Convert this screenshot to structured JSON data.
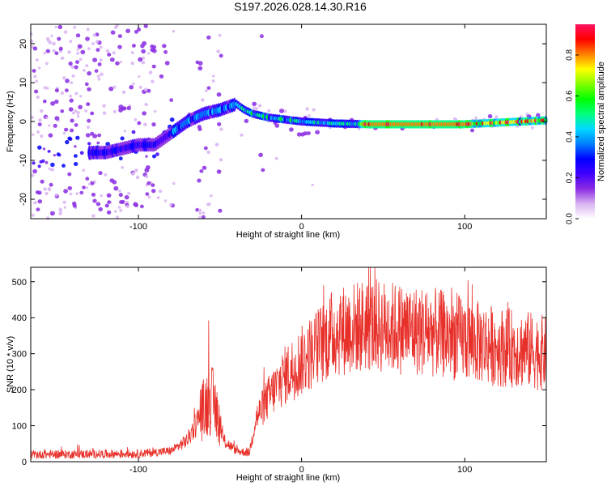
{
  "figure": {
    "title": "S197.2026.028.14.30.R16"
  },
  "chart_data": [
    {
      "type": "heatmap",
      "name": "spectrogram",
      "title": "S197.2026.028.14.30.R16",
      "xlabel": "Height of straight line (km)",
      "ylabel": "Frequency (Hz)",
      "xlim": [
        -166,
        150
      ],
      "ylim": [
        -25,
        25
      ],
      "xticks": [
        -100,
        0,
        100
      ],
      "yticks": [
        -20,
        -10,
        0,
        10,
        20
      ],
      "ridge": [
        {
          "x": -120,
          "y": -8
        },
        {
          "x": -110,
          "y": -7
        },
        {
          "x": -100,
          "y": -6
        },
        {
          "x": -90,
          "y": -6
        },
        {
          "x": -80,
          "y": -3
        },
        {
          "x": -70,
          "y": 0
        },
        {
          "x": -60,
          "y": 2
        },
        {
          "x": -50,
          "y": 3
        },
        {
          "x": -40,
          "y": 4.5
        },
        {
          "x": -35,
          "y": 3
        },
        {
          "x": -30,
          "y": 2
        },
        {
          "x": -20,
          "y": 1
        },
        {
          "x": -10,
          "y": 0.5
        },
        {
          "x": 0,
          "y": 0
        },
        {
          "x": 20,
          "y": -0.5
        },
        {
          "x": 40,
          "y": -0.7
        },
        {
          "x": 60,
          "y": -0.7
        },
        {
          "x": 80,
          "y": -0.7
        },
        {
          "x": 100,
          "y": -0.7
        },
        {
          "x": 120,
          "y": -0.3
        },
        {
          "x": 150,
          "y": 0.3
        }
      ],
      "colorbar": {
        "label": "Normalized spectral amplitude",
        "range": [
          0.0,
          0.95
        ],
        "ticks": [
          "0.0",
          "0.2",
          "0.4",
          "0.6",
          "0.8"
        ],
        "colors": [
          "#ffffff",
          "#d9b3f2",
          "#8a2be2",
          "#4000ff",
          "#0000ff",
          "#0080ff",
          "#00d8ff",
          "#00ff80",
          "#00ff00",
          "#80ff00",
          "#ffff00",
          "#ff8000",
          "#ff0000",
          "#ff1060"
        ]
      }
    },
    {
      "type": "line",
      "name": "snr",
      "xlabel": "Height of straight line (km)",
      "ylabel": "SNR (10 * v/v)",
      "xlim": [
        -166,
        150
      ],
      "ylim": [
        0,
        540
      ],
      "xticks": [
        -100,
        0,
        100
      ],
      "yticks": [
        0,
        100,
        200,
        300,
        400,
        500
      ],
      "line_color": "#e8302a",
      "envelope": [
        {
          "x": -166,
          "y": 20
        },
        {
          "x": -100,
          "y": 22
        },
        {
          "x": -80,
          "y": 30
        },
        {
          "x": -70,
          "y": 60
        },
        {
          "x": -62,
          "y": 130
        },
        {
          "x": -56,
          "y": 180
        },
        {
          "x": -52,
          "y": 140
        },
        {
          "x": -48,
          "y": 60
        },
        {
          "x": -40,
          "y": 30
        },
        {
          "x": -32,
          "y": 25
        },
        {
          "x": -28,
          "y": 120
        },
        {
          "x": -20,
          "y": 180
        },
        {
          "x": -10,
          "y": 240
        },
        {
          "x": 0,
          "y": 280
        },
        {
          "x": 10,
          "y": 320
        },
        {
          "x": 20,
          "y": 360
        },
        {
          "x": 40,
          "y": 380
        },
        {
          "x": 60,
          "y": 370
        },
        {
          "x": 80,
          "y": 360
        },
        {
          "x": 100,
          "y": 340
        },
        {
          "x": 120,
          "y": 320
        },
        {
          "x": 140,
          "y": 310
        },
        {
          "x": 150,
          "y": 300
        }
      ]
    }
  ]
}
